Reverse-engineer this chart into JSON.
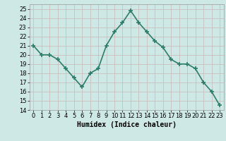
{
  "x": [
    0,
    1,
    2,
    3,
    4,
    5,
    6,
    7,
    8,
    9,
    10,
    11,
    12,
    13,
    14,
    15,
    16,
    17,
    18,
    19,
    20,
    21,
    22,
    23
  ],
  "y": [
    21,
    20,
    20,
    19.5,
    18.5,
    17.5,
    16.5,
    18,
    18.5,
    21,
    22.5,
    23.5,
    24.8,
    23.5,
    22.5,
    21.5,
    20.8,
    19.5,
    19,
    19,
    18.5,
    17,
    16,
    14.5
  ],
  "line_color": "#2e7d6b",
  "marker": "+",
  "marker_size": 4,
  "marker_linewidth": 1.2,
  "bg_color": "#cde8e5",
  "grid_color_major": "#c8b8b8",
  "grid_color_minor": "#c8b8b8",
  "xlabel": "Humidex (Indice chaleur)",
  "ylim": [
    14,
    25.5
  ],
  "yticks": [
    14,
    15,
    16,
    17,
    18,
    19,
    20,
    21,
    22,
    23,
    24,
    25
  ],
  "xlim": [
    -0.5,
    23.5
  ],
  "xticks": [
    0,
    1,
    2,
    3,
    4,
    5,
    6,
    7,
    8,
    9,
    10,
    11,
    12,
    13,
    14,
    15,
    16,
    17,
    18,
    19,
    20,
    21,
    22,
    23
  ],
  "linewidth": 1.2,
  "xlabel_fontsize": 7,
  "tick_fontsize": 6
}
